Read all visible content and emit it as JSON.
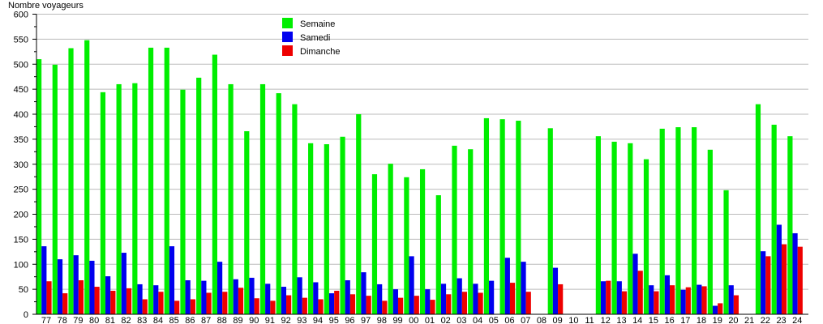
{
  "chart_data": {
    "type": "bar",
    "ylabel": "Nombre voyageurs",
    "xlabel": "",
    "title": "",
    "ylim": [
      0,
      600
    ],
    "yticks": [
      0,
      50,
      100,
      150,
      200,
      250,
      300,
      350,
      400,
      450,
      500,
      550,
      600
    ],
    "grid": true,
    "legend_position": "top-center",
    "categories": [
      "77",
      "78",
      "79",
      "80",
      "81",
      "82",
      "83",
      "84",
      "85",
      "86",
      "87",
      "88",
      "89",
      "90",
      "91",
      "92",
      "93",
      "94",
      "95",
      "96",
      "97",
      "98",
      "99",
      "00",
      "01",
      "02",
      "03",
      "04",
      "05",
      "06",
      "07",
      "08",
      "09",
      "10",
      "11",
      "12",
      "13",
      "14",
      "15",
      "16",
      "17",
      "18",
      "19",
      "20",
      "21",
      "22",
      "23",
      "24"
    ],
    "series": [
      {
        "name": "Semaine",
        "color": "#00ee00",
        "values": [
          510,
          499,
          532,
          548,
          444,
          460,
          462,
          533,
          533,
          449,
          473,
          519,
          460,
          366,
          460,
          442,
          420,
          342,
          340,
          355,
          400,
          280,
          301,
          274,
          290,
          238,
          337,
          330,
          392,
          390,
          387,
          null,
          372,
          null,
          null,
          356,
          345,
          342,
          310,
          371,
          374,
          374,
          329,
          248,
          null,
          420,
          379,
          356
        ]
      },
      {
        "name": "Samedi",
        "color": "#0000ee",
        "values": [
          136,
          110,
          118,
          107,
          76,
          123,
          60,
          58,
          136,
          68,
          67,
          105,
          70,
          73,
          61,
          55,
          74,
          64,
          42,
          68,
          84,
          60,
          50,
          116,
          50,
          61,
          72,
          61,
          67,
          113,
          105,
          null,
          93,
          null,
          null,
          66,
          66,
          121,
          58,
          78,
          49,
          59,
          17,
          58,
          null,
          126,
          179,
          162
        ]
      },
      {
        "name": "Dimanche",
        "color": "#ee0000",
        "values": [
          66,
          42,
          68,
          55,
          47,
          52,
          30,
          45,
          27,
          30,
          43,
          45,
          53,
          32,
          27,
          38,
          33,
          30,
          47,
          40,
          37,
          27,
          33,
          37,
          29,
          40,
          45,
          43,
          null,
          63,
          45,
          null,
          60,
          null,
          null,
          67,
          46,
          87,
          46,
          58,
          54,
          56,
          22,
          38,
          null,
          116,
          140,
          135
        ]
      }
    ]
  }
}
